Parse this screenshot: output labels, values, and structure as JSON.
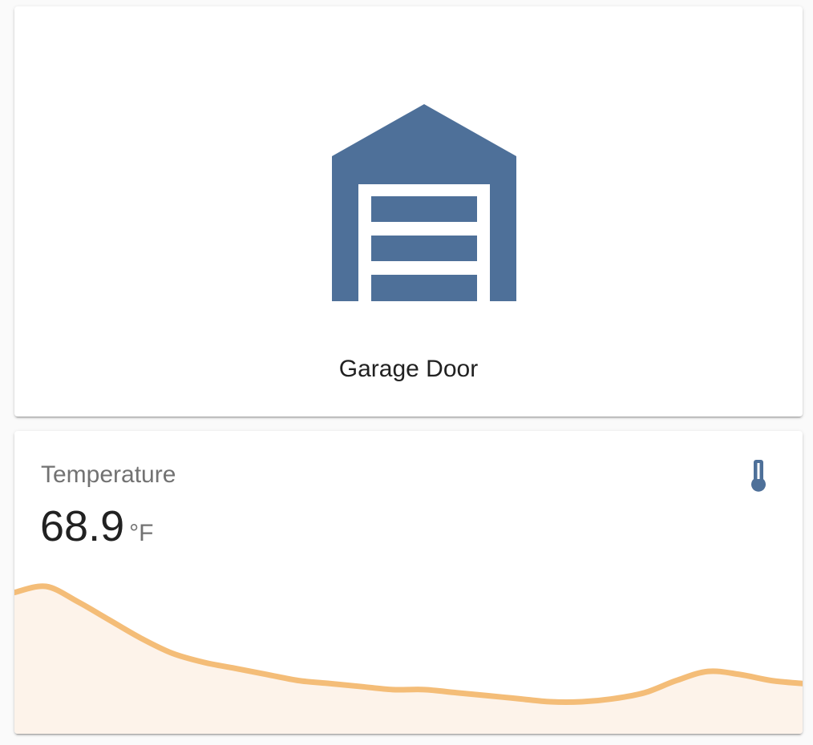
{
  "garage": {
    "name": "Garage Door",
    "icon": "garage-icon",
    "icon_color": "#4e7099"
  },
  "temperature": {
    "title": "Temperature",
    "value": "68.9",
    "unit": "°F",
    "icon": "thermometer-icon",
    "icon_color": "#4e7099",
    "graph_color": "#f4bd78",
    "graph_fill": "#fdf3ea",
    "history": [
      70.6,
      70.8,
      70.3,
      69.7,
      69.1,
      68.6,
      68.3,
      68.1,
      67.9,
      67.7,
      67.6,
      67.5,
      67.4,
      67.4,
      67.3,
      67.2,
      67.1,
      67.0,
      67.0,
      67.1,
      67.3,
      67.7,
      68.0,
      67.9,
      67.7,
      67.6
    ]
  }
}
